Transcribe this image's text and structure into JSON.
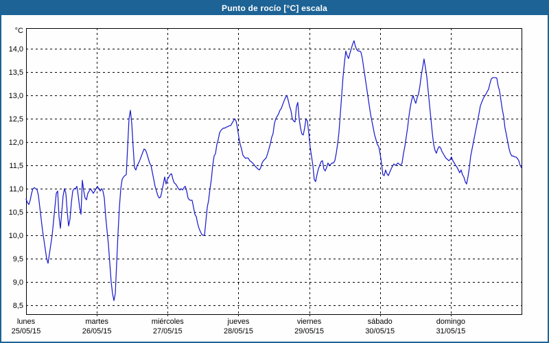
{
  "window": {
    "title": "Punto de rocío [°C] escala"
  },
  "colors": {
    "titlebar_bg": "#1d6395",
    "titlebar_fg": "#ffffff",
    "outer_border": "#1d6395",
    "background": "#fdfefd",
    "line": "#1414cc",
    "grid": "#000000",
    "text": "#000000"
  },
  "chart_data": {
    "type": "line",
    "title": "Punto de rocío [°C] escala",
    "legend": "none",
    "grid": {
      "horizontal": "dashed",
      "vertical": "dashed-at-day-boundaries"
    },
    "y_axis": {
      "unit_label": "°C",
      "min": 8.5,
      "max": 14.0,
      "tick_step": 0.5,
      "tick_values": [
        14.0,
        13.5,
        13.0,
        12.5,
        12.0,
        11.5,
        11.0,
        10.5,
        10.0,
        9.5,
        9.0,
        8.5
      ],
      "tick_labels": [
        "14,0",
        "13,5",
        "13,0",
        "12,5",
        "12,0",
        "11,5",
        "11,0",
        "10,5",
        "10,0",
        "9,5",
        "9,0",
        "8,5"
      ]
    },
    "x_axis": {
      "total_hours": 168,
      "days": [
        {
          "name": "lunes",
          "date": "25/05/15"
        },
        {
          "name": "martes",
          "date": "26/05/15"
        },
        {
          "name": "miércoles",
          "date": "27/05/15"
        },
        {
          "name": "jueves",
          "date": "28/05/15"
        },
        {
          "name": "viernes",
          "date": "29/05/15"
        },
        {
          "name": "sábado",
          "date": "30/05/15"
        },
        {
          "name": "domingo",
          "date": "31/05/15"
        }
      ]
    },
    "series": [
      {
        "name": "Punto de rocío",
        "unit": "°C",
        "color": "#1414cc",
        "start_hour": 0,
        "step_hours": 0.4653,
        "values": [
          10.78,
          10.7,
          10.66,
          10.75,
          10.9,
          11.0,
          11.02,
          11.0,
          10.98,
          10.85,
          10.6,
          10.35,
          10.1,
          9.9,
          9.7,
          9.5,
          9.4,
          9.6,
          9.8,
          10.0,
          10.3,
          10.6,
          10.9,
          10.95,
          10.4,
          10.15,
          10.5,
          10.85,
          11.0,
          10.9,
          10.5,
          10.2,
          10.35,
          10.7,
          10.95,
          11.0,
          11.0,
          11.05,
          10.85,
          10.6,
          10.45,
          11.18,
          10.95,
          10.8,
          10.76,
          10.9,
          10.95,
          11.0,
          10.95,
          10.9,
          10.95,
          11.0,
          11.05,
          11.0,
          10.95,
          11.0,
          10.95,
          10.8,
          10.4,
          10.1,
          9.8,
          9.4,
          9.0,
          8.75,
          8.6,
          8.75,
          9.4,
          10.05,
          10.6,
          11.0,
          11.2,
          11.25,
          11.28,
          11.3,
          11.9,
          12.5,
          12.68,
          12.4,
          11.9,
          11.45,
          11.4,
          11.5,
          11.55,
          11.62,
          11.7,
          11.78,
          11.85,
          11.83,
          11.75,
          11.65,
          11.55,
          11.5,
          11.35,
          11.2,
          11.05,
          10.95,
          10.85,
          10.8,
          10.82,
          10.95,
          11.1,
          11.25,
          11.1,
          11.2,
          11.25,
          11.3,
          11.32,
          11.2,
          11.12,
          11.1,
          11.05,
          11.0,
          10.97,
          11.0,
          10.97,
          11.02,
          11.05,
          10.95,
          10.8,
          10.76,
          10.75,
          10.75,
          10.6,
          10.45,
          10.4,
          10.25,
          10.15,
          10.08,
          10.02,
          10.0,
          10.0,
          10.3,
          10.6,
          10.75,
          11.0,
          11.2,
          11.5,
          11.7,
          11.75,
          11.95,
          12.05,
          12.2,
          12.25,
          12.28,
          12.3,
          12.3,
          12.32,
          12.33,
          12.35,
          12.35,
          12.4,
          12.45,
          12.5,
          12.45,
          12.3,
          12.1,
          11.95,
          11.85,
          11.72,
          11.68,
          11.65,
          11.66,
          11.65,
          11.6,
          11.58,
          11.55,
          11.52,
          11.48,
          11.45,
          11.42,
          11.4,
          11.45,
          11.55,
          11.6,
          11.63,
          11.66,
          11.75,
          11.85,
          11.96,
          12.1,
          12.18,
          12.4,
          12.5,
          12.55,
          12.6,
          12.68,
          12.72,
          12.8,
          12.88,
          12.95,
          13.0,
          12.9,
          12.77,
          12.68,
          12.5,
          12.45,
          12.43,
          12.75,
          12.85,
          12.5,
          12.3,
          12.17,
          12.15,
          12.3,
          12.5,
          12.45,
          12.2,
          11.9,
          11.7,
          11.5,
          11.2,
          11.15,
          11.3,
          11.42,
          11.5,
          11.58,
          11.6,
          11.42,
          11.38,
          11.45,
          11.55,
          11.5,
          11.52,
          11.55,
          11.55,
          11.6,
          11.75,
          11.95,
          12.2,
          12.6,
          13.0,
          13.4,
          13.7,
          13.95,
          13.85,
          13.79,
          13.9,
          14.0,
          14.1,
          14.17,
          14.05,
          13.98,
          13.95,
          13.95,
          13.93,
          13.8,
          13.6,
          13.4,
          13.2,
          13.0,
          12.8,
          12.6,
          12.45,
          12.3,
          12.15,
          12.05,
          11.95,
          11.9,
          11.75,
          11.55,
          11.3,
          11.28,
          11.4,
          11.32,
          11.28,
          11.35,
          11.42,
          11.48,
          11.53,
          11.5,
          11.52,
          11.55,
          11.52,
          11.5,
          11.55,
          11.75,
          11.9,
          12.1,
          12.3,
          12.55,
          12.75,
          12.9,
          13.0,
          12.9,
          12.83,
          12.95,
          13.03,
          13.2,
          13.43,
          13.6,
          13.78,
          13.6,
          13.4,
          13.1,
          12.8,
          12.5,
          12.2,
          11.95,
          11.82,
          11.76,
          11.85,
          11.9,
          11.88,
          11.8,
          11.75,
          11.7,
          11.65,
          11.63,
          11.6,
          11.62,
          11.68,
          11.6,
          11.55,
          11.5,
          11.46,
          11.4,
          11.34,
          11.4,
          11.3,
          11.25,
          11.15,
          11.1,
          11.25,
          11.45,
          11.7,
          11.85,
          12.0,
          12.15,
          12.3,
          12.45,
          12.6,
          12.77,
          12.85,
          12.92,
          12.98,
          13.02,
          13.08,
          13.13,
          13.25,
          13.35,
          13.38,
          13.38,
          13.38,
          13.37,
          13.2,
          13.1,
          12.9,
          12.7,
          12.55,
          12.3,
          12.16,
          12.0,
          11.85,
          11.75,
          11.7,
          11.7,
          11.68,
          11.68,
          11.65,
          11.6,
          11.5,
          11.45
        ]
      }
    ]
  }
}
